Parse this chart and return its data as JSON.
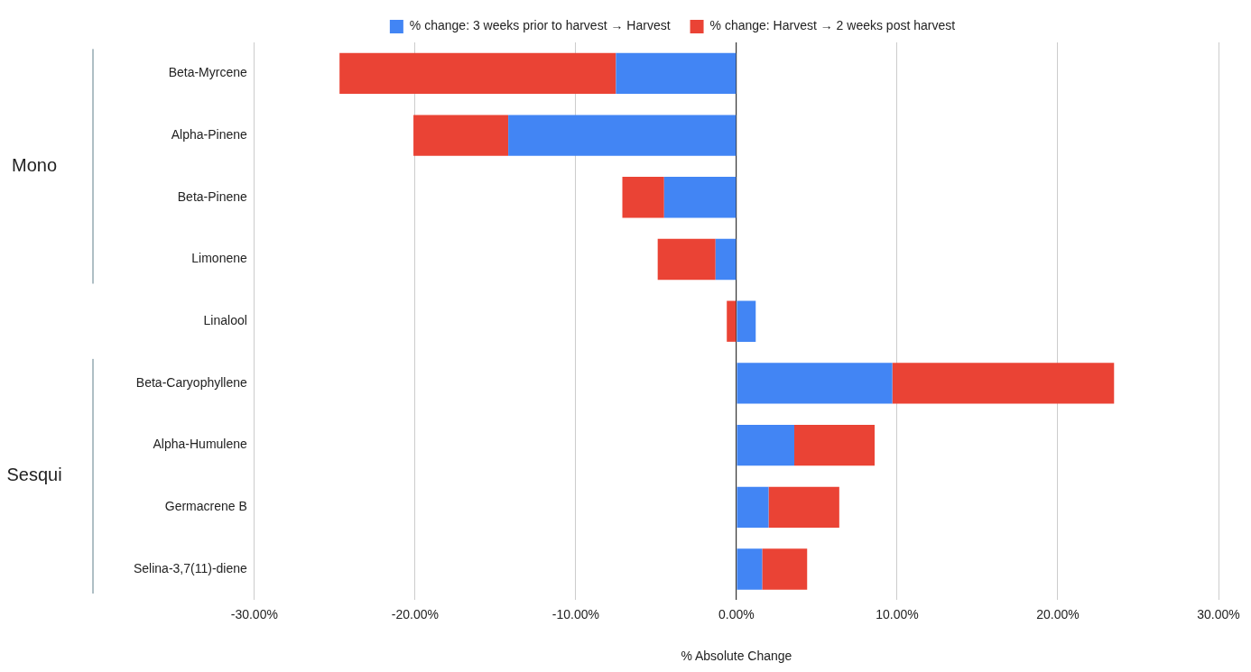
{
  "chart_data": {
    "type": "bar",
    "orientation": "horizontal",
    "stacked": true,
    "categories": [
      "Beta-Myrcene",
      "Alpha-Pinene",
      "Beta-Pinene",
      "Limonene",
      "Linalool",
      "Beta-Caryophyllene",
      "Alpha-Humulene",
      "Germacrene B",
      "Selina-3,7(11)-diene"
    ],
    "series": [
      {
        "name": "% change: 3 weeks prior to harvest → Harvest",
        "color": "#4285f4",
        "values": [
          -7.5,
          -14.2,
          -4.5,
          -1.3,
          1.2,
          9.7,
          3.6,
          2.0,
          1.6
        ]
      },
      {
        "name": "% change: Harvest → 2 weeks post harvest",
        "color": "#ea4335",
        "values": [
          -17.2,
          -5.9,
          -2.6,
          -3.6,
          -0.6,
          13.8,
          5.0,
          4.4,
          2.8
        ]
      }
    ],
    "xlabel": "% Absolute Change",
    "xlim": [
      -30,
      30
    ],
    "xticks": [
      {
        "value": -30,
        "label": "-30.00%"
      },
      {
        "value": -20,
        "label": "-20.00%"
      },
      {
        "value": -10,
        "label": "-10.00%"
      },
      {
        "value": 0,
        "label": "0.00%"
      },
      {
        "value": 10,
        "label": "10.00%"
      },
      {
        "value": 20,
        "label": "20.00%"
      },
      {
        "value": 30,
        "label": "30.00%"
      }
    ],
    "grid": "x",
    "legend": "top",
    "annotations": [
      "Mono",
      "Sesqui"
    ]
  }
}
